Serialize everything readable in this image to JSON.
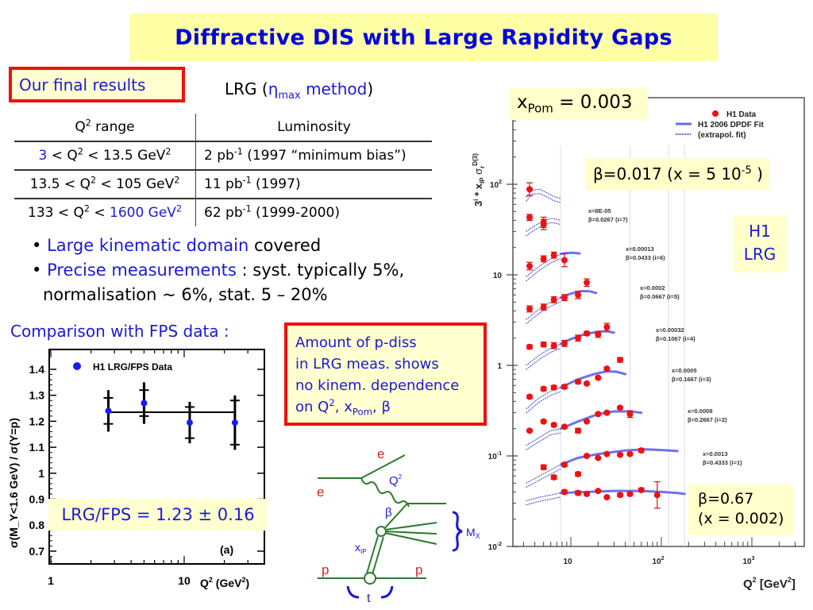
{
  "title": "Diffractive DIS with Large Rapidity Gaps",
  "final_results_label": "Our final results",
  "lrg_heading": {
    "prefix": "LRG (",
    "eta": "η",
    "eta_sub": "max",
    "method": " method",
    "suffix": ")"
  },
  "luminosity_table": {
    "headers": {
      "q2": "Q",
      "q2_sup": "2",
      "q2_rest": " range",
      "lumi": "Luminosity"
    },
    "rows": [
      {
        "lo": "3",
        "q": " < Q",
        "q_sup": "2",
        "mid": " < 13.5 GeV",
        "hi": "",
        "gev_sup": "2",
        "lumi": "2 pb",
        "lumi_sup": "-1",
        "lumi_rest": " (1997 “minimum bias”)"
      },
      {
        "lo": "13.5",
        "q": " < Q",
        "q_sup": "2",
        "mid": " < 105 GeV",
        "hi": "",
        "gev_sup": "2",
        "lumi": "11 pb",
        "lumi_sup": "-1",
        "lumi_rest": " (1997)"
      },
      {
        "lo": "133",
        "q": " < Q",
        "q_sup": "2",
        "mid": " < ",
        "hi": "1600 GeV",
        "gev_sup": "2",
        "lumi": "62 pb",
        "lumi_sup": "-1",
        "lumi_rest": " (1999-2000)"
      }
    ]
  },
  "bullets": [
    {
      "highlight": "Large kinematic domain",
      "rest": " covered"
    },
    {
      "highlight": "Precise measurements",
      "rest": " : syst. typically 5%,"
    }
  ],
  "bullet_continuation": "normalisation ~ 6%, stat. 5 – 20%",
  "comparison_label": "Comparison with FPS data :",
  "pdiss_note": {
    "line1": "Amount of p-diss",
    "line2": "in LRG meas. shows",
    "line3": "no kinem. dependence",
    "line4_prefix": "on Q",
    "line4_sup": "2",
    "line4_mid": ", x",
    "line4_sub": "Pom",
    "line4_end": ", β"
  },
  "ratio_result": "LRG/FPS = 1.23 ± 0.16",
  "xpom_label": {
    "x": "x",
    "sub": "Pom",
    "rest": " = 0.003"
  },
  "beta_top_label": {
    "text": "β=0.017 (x = 5 10",
    "sup": "-5",
    "end": " )"
  },
  "h1_lrg_label": {
    "line1": "H1",
    "line2": "LRG"
  },
  "beta_bottom_label": {
    "line1": "β=0.67",
    "line2": "(x = 0.002)"
  },
  "diagram": {
    "e_in": "e",
    "e_out": "e",
    "q2": "Q",
    "q2_sup": "2",
    "beta": "β",
    "mx": "M",
    "mx_sub": "X",
    "xip": "x",
    "xip_sub": "IP",
    "p_in": "p",
    "p_out": "p",
    "t": "t"
  },
  "colors": {
    "title_bg": "#ffffa6",
    "blue_text": "#1a1ad8",
    "red_border": "#ee1111",
    "data_red": "#ee1111",
    "fit_blue": "#6a6aee",
    "diagram_green": "#2d7a2d"
  },
  "chart_data": [
    {
      "type": "scatter",
      "title": "",
      "legend": [
        "H1 LRG/FPS Data"
      ],
      "legend_position": "top-left",
      "xlabel": "Q² (GeV²)",
      "xlabel_parts": {
        "q": "Q",
        "sup": "2",
        "gev": " (GeV",
        "gev_sup": "2",
        "end": ")"
      },
      "ylabel": "σ(M_Y<1.6 GeV) / σ(Y=p)",
      "x_scale": "log",
      "xlim": [
        1,
        40
      ],
      "ylim": [
        0.65,
        1.48
      ],
      "x_ticks": [
        "1",
        "10"
      ],
      "y_ticks": [
        "0.7",
        "0.8",
        "0.9",
        "1",
        "1.1",
        "1.2",
        "1.3",
        "1.4"
      ],
      "panel_label": "(a)",
      "points": [
        {
          "x": 2.7,
          "y": 1.24,
          "stat_lo": 1.19,
          "stat_hi": 1.29,
          "tot_lo": 1.16,
          "tot_hi": 1.32
        },
        {
          "x": 5.0,
          "y": 1.27,
          "stat_lo": 1.22,
          "stat_hi": 1.32,
          "tot_lo": 1.19,
          "tot_hi": 1.35
        },
        {
          "x": 11.0,
          "y": 1.195,
          "stat_lo": 1.135,
          "stat_hi": 1.255,
          "tot_lo": 1.115,
          "tot_hi": 1.275
        },
        {
          "x": 24.0,
          "y": 1.195,
          "stat_lo": 1.11,
          "stat_hi": 1.28,
          "tot_lo": 1.09,
          "tot_hi": 1.3
        }
      ],
      "fit_line": {
        "y": 1.235,
        "x_from": 2.7,
        "x_to": 24.0
      }
    },
    {
      "type": "scatter",
      "title": "",
      "legend": [
        "H1 Data",
        "H1 2006 DPDF Fit",
        "(extrapol. fit)"
      ],
      "legend_position": "top-right",
      "xlabel": "Q² [GeV²]",
      "xlabel_parts": {
        "q": "Q",
        "sup": "2",
        "gev": " [GeV",
        "gev_sup": "2",
        "end": "]"
      },
      "ylabel": "3^i * x_IP σ_r^D(3)",
      "ylabel_parts": {
        "three": "3",
        "i": "i",
        "mid": " * x",
        "ip": "IP",
        "sig": " σ",
        "r": "r",
        "d3": "D(3)"
      },
      "x_scale": "log",
      "y_scale": "log",
      "xlim": [
        2.3,
        5000
      ],
      "ylim": [
        0.01,
        900
      ],
      "x_ticks": [
        {
          "base": "10",
          "exp": ""
        },
        {
          "base": "10",
          "exp": "2"
        },
        {
          "base": "10",
          "exp": "3"
        }
      ],
      "y_ticks": [
        {
          "base": "10",
          "exp": "-2"
        },
        {
          "base": "10",
          "exp": "-1"
        },
        {
          "base": "1",
          "exp": ""
        },
        {
          "base": "10",
          "exp": ""
        },
        {
          "base": "10",
          "exp": "2"
        }
      ],
      "bins": [
        {
          "i": 7,
          "x_label": "x=8E-05",
          "beta_label": "β=0.0267 (i=7)",
          "points": [
            [
              3.5,
              88,
              0.18
            ],
            [
              5.0,
              38,
              0.14
            ]
          ],
          "fit": [],
          "extrap": [
            [
              3.2,
              72
            ],
            [
              3.7,
              86
            ],
            [
              4.5,
              88
            ],
            [
              5.5,
              80
            ],
            [
              6.5,
              73
            ],
            [
              7.7,
              70
            ]
          ]
        },
        {
          "i": 6,
          "x_label": "x=0.00013",
          "beta_label": "β=0.0433 (i=6)",
          "points": [
            [
              3.5,
              43,
              0.08
            ],
            [
              5.0,
              36,
              0.14
            ]
          ],
          "fit": [],
          "extrap": [
            [
              3.2,
              30
            ],
            [
              4,
              35
            ],
            [
              5,
              39
            ],
            [
              6,
              42
            ],
            [
              7,
              41
            ],
            [
              7.7,
              40
            ]
          ]
        },
        {
          "i": 5,
          "x_label": "x=0.0002",
          "beta_label": "β=0.0667 (i=5)",
          "points": [
            [
              3.5,
              12.5,
              0.1
            ],
            [
              5.0,
              15,
              0.08
            ],
            [
              6.5,
              16.5,
              0.08
            ],
            [
              8.5,
              14.5,
              0.18
            ]
          ],
          "fit": [
            [
              7.7,
              17.0
            ],
            [
              9,
              17.4
            ],
            [
              10.5,
              17.5
            ],
            [
              12.5,
              17.2
            ]
          ],
          "extrap": [
            [
              3.2,
              9.5
            ],
            [
              4.5,
              12.5
            ],
            [
              6,
              15
            ],
            [
              7.7,
              16.8
            ]
          ]
        },
        {
          "i": 4,
          "x_label": "x=0.00032",
          "beta_label": "β=0.1067 (i=4)",
          "points": [
            [
              3.5,
              4.2,
              0.08
            ],
            [
              5.0,
              4.4,
              0.08
            ],
            [
              6.5,
              5.3,
              0.08
            ],
            [
              8.5,
              5.6,
              0.08
            ],
            [
              12,
              6.0,
              0.1
            ],
            [
              15,
              8.2,
              0.1
            ]
          ],
          "fit": [
            [
              7.7,
              5.6
            ],
            [
              10,
              6.2
            ],
            [
              13,
              6.6
            ],
            [
              16,
              6.6
            ],
            [
              19,
              6.3
            ]
          ],
          "extrap": [
            [
              3.2,
              3.2
            ],
            [
              4.5,
              4.2
            ],
            [
              6,
              5.0
            ],
            [
              7.7,
              5.6
            ]
          ]
        },
        {
          "i": 3,
          "x_label": "x=0.0005",
          "beta_label": "β=0.1667 (i=3)",
          "points": [
            [
              3.5,
              1.6,
              0.05
            ],
            [
              5.0,
              1.7,
              0.06
            ],
            [
              6.5,
              1.65,
              0.08
            ],
            [
              8.5,
              1.75,
              0.08
            ],
            [
              12,
              2.0,
              0.08
            ],
            [
              15,
              2.25,
              0.05
            ],
            [
              20,
              2.2,
              0.08
            ],
            [
              25,
              2.65,
              0.1
            ]
          ],
          "fit": [
            [
              7.7,
              1.72
            ],
            [
              10,
              1.95
            ],
            [
              14,
              2.2
            ],
            [
              20,
              2.35
            ],
            [
              25,
              2.38
            ],
            [
              30,
              2.3
            ]
          ],
          "extrap": [
            [
              3.2,
              1.0
            ],
            [
              4.5,
              1.3
            ],
            [
              6,
              1.55
            ],
            [
              7.7,
              1.72
            ]
          ]
        },
        {
          "i": 2,
          "x_label": "x=0.0008",
          "beta_label": "β=0.2667 (i=2)",
          "points": [
            [
              3.5,
              0.45,
              0.04
            ],
            [
              5.0,
              0.55,
              0.05
            ],
            [
              6.5,
              0.57,
              0.05
            ],
            [
              8.5,
              0.58,
              0.05
            ],
            [
              12,
              0.66,
              0.05
            ],
            [
              15,
              0.63,
              0.03
            ],
            [
              20,
              0.73,
              0.03
            ],
            [
              25,
              0.92,
              0.03
            ],
            [
              35,
              1.15,
              0.06
            ]
          ],
          "fit": [
            [
              7.7,
              0.57
            ],
            [
              12,
              0.7
            ],
            [
              18,
              0.8
            ],
            [
              25,
              0.86
            ],
            [
              32,
              0.85
            ],
            [
              40,
              0.8
            ]
          ],
          "extrap": [
            [
              3.2,
              0.33
            ],
            [
              4.5,
              0.44
            ],
            [
              6,
              0.52
            ],
            [
              7.7,
              0.57
            ]
          ]
        },
        {
          "i": 1,
          "x_label": "x=0.0013",
          "beta_label": "β=0.4333 (i=1)",
          "points": [
            [
              3.5,
              0.19,
              0.03
            ],
            [
              5.0,
              0.24,
              0.04
            ],
            [
              6.5,
              0.22,
              0.04
            ],
            [
              8.5,
              0.21,
              0.04
            ],
            [
              12,
              0.19,
              0.06
            ],
            [
              15,
              0.24,
              0.02
            ],
            [
              20,
              0.29,
              0.03
            ],
            [
              25,
              0.3,
              0.03
            ],
            [
              35,
              0.34,
              0.03
            ],
            [
              45,
              0.29,
              0.09
            ]
          ],
          "fit": [
            [
              7.7,
              0.2
            ],
            [
              12,
              0.24
            ],
            [
              20,
              0.29
            ],
            [
              30,
              0.31
            ],
            [
              45,
              0.31
            ],
            [
              60,
              0.3
            ]
          ],
          "extrap": [
            [
              3.2,
              0.13
            ],
            [
              4.5,
              0.16
            ],
            [
              6,
              0.19
            ],
            [
              7.7,
              0.2
            ]
          ]
        },
        {
          "i": 0,
          "x_label": "",
          "beta_label": "",
          "points": [
            [
              5.0,
              0.075,
              0.06
            ],
            [
              6.5,
              0.058,
              0.05
            ],
            [
              8.5,
              0.08,
              0.05
            ],
            [
              12,
              0.063,
              0.05
            ],
            [
              15,
              0.1,
              0.02
            ],
            [
              20,
              0.095,
              0.02
            ],
            [
              25,
              0.105,
              0.02
            ],
            [
              35,
              0.103,
              0.02
            ],
            [
              45,
              0.105,
              0.03
            ],
            [
              60,
              0.115,
              0.05
            ]
          ],
          "fit": [
            [
              7.7,
              0.08
            ],
            [
              12,
              0.095
            ],
            [
              20,
              0.105
            ],
            [
              40,
              0.115
            ],
            [
              70,
              0.118
            ],
            [
              120,
              0.115
            ],
            [
              150,
              0.113
            ]
          ],
          "extrap": [
            [
              3.2,
              0.05
            ],
            [
              4.5,
              0.06
            ],
            [
              6,
              0.07
            ],
            [
              7.7,
              0.08
            ]
          ]
        },
        {
          "i": -1,
          "x_label": "",
          "beta_label": "",
          "points": [
            [
              8.5,
              0.04,
              0.05
            ],
            [
              12,
              0.039,
              0.05
            ],
            [
              15,
              0.038,
              0.02
            ],
            [
              20,
              0.041,
              0.02
            ],
            [
              25,
              0.035,
              0.02
            ],
            [
              35,
              0.037,
              0.04
            ],
            [
              45,
              0.038,
              0.04
            ],
            [
              60,
              0.042,
              0.05
            ],
            [
              90,
              0.037,
              0.4
            ]
          ],
          "fit": [
            [
              7.7,
              0.039
            ],
            [
              15,
              0.04
            ],
            [
              30,
              0.041
            ],
            [
              60,
              0.041
            ],
            [
              100,
              0.04
            ],
            [
              150,
              0.039
            ],
            [
              180,
              0.038
            ]
          ],
          "extrap": [
            [
              3.2,
              0.032
            ],
            [
              4.5,
              0.035
            ],
            [
              6,
              0.037
            ],
            [
              7.7,
              0.039
            ]
          ]
        }
      ],
      "vertical_guides": [
        7.7,
        45,
        120,
        180
      ]
    }
  ]
}
